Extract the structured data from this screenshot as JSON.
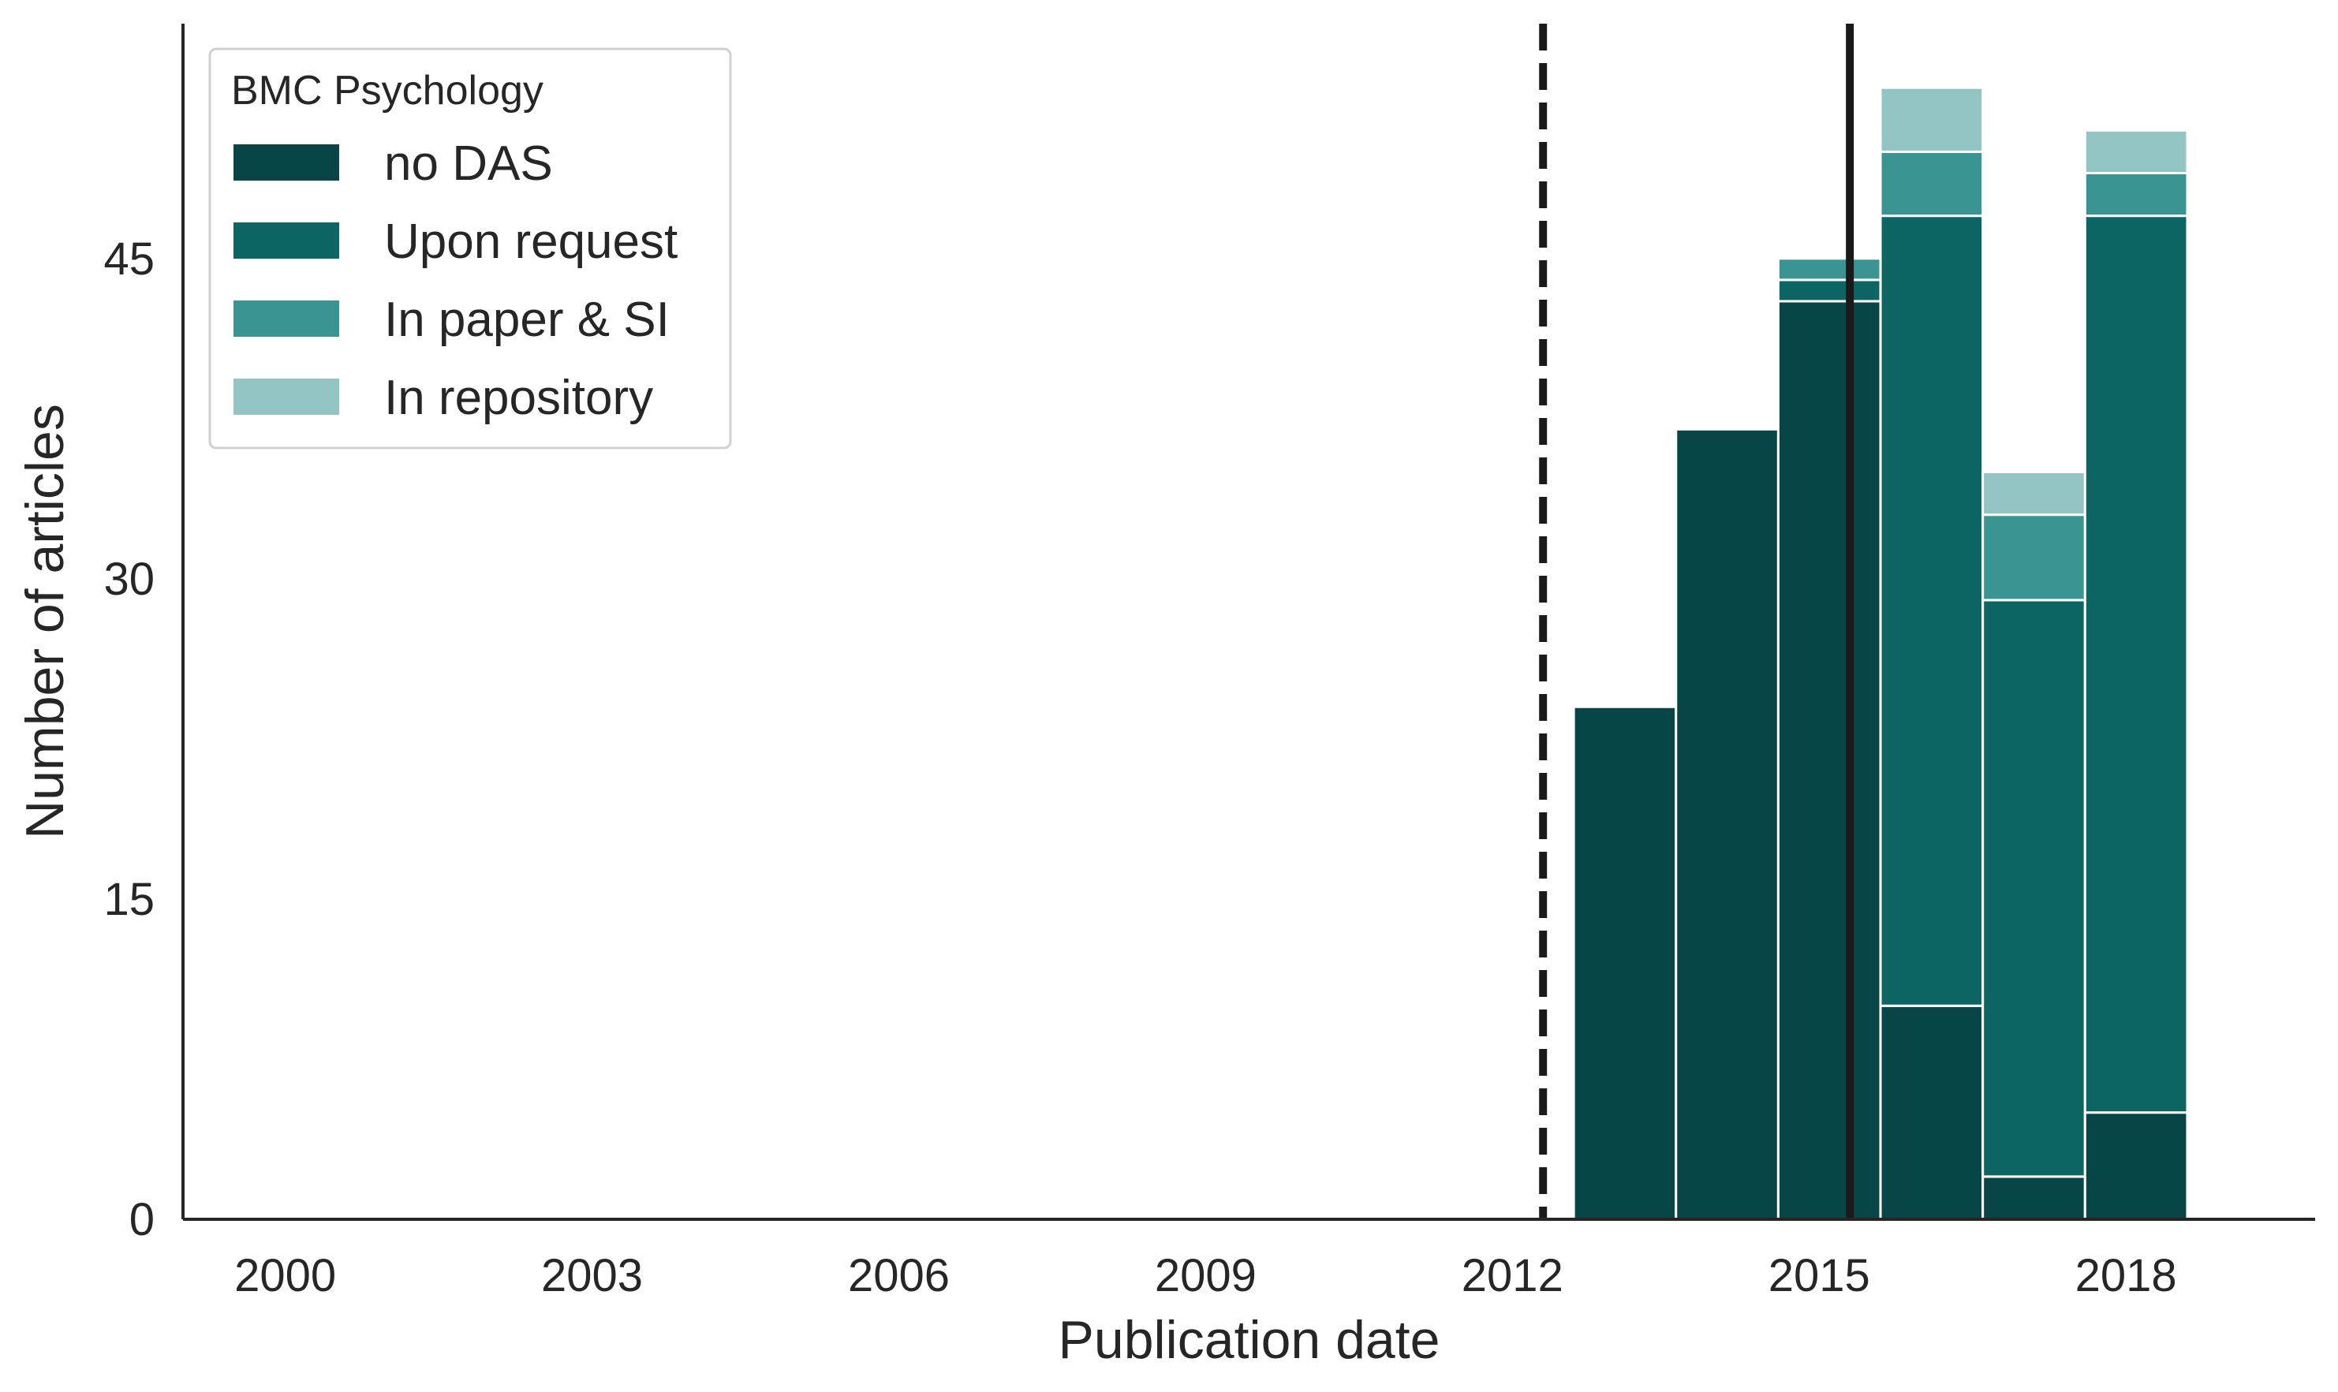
{
  "chart_data": {
    "type": "bar",
    "stacked": true,
    "xlabel": "Publication date",
    "ylabel": "Number of articles",
    "x_ticks": [
      "2000",
      "2003",
      "2006",
      "2009",
      "2012",
      "2015",
      "2018"
    ],
    "y_ticks": [
      "0",
      "15",
      "30",
      "45"
    ],
    "xlim": [
      1999.0,
      2019.85
    ],
    "ylim": [
      0,
      56
    ],
    "grid": false,
    "legend": {
      "title": "BMC Psychology",
      "placement": "top-left"
    },
    "bins": [
      {
        "start": 2012.6,
        "end": 2013.6
      },
      {
        "start": 2013.6,
        "end": 2014.6
      },
      {
        "start": 2014.6,
        "end": 2015.6
      },
      {
        "start": 2015.6,
        "end": 2016.6
      },
      {
        "start": 2016.6,
        "end": 2017.6
      },
      {
        "start": 2017.6,
        "end": 2018.6
      }
    ],
    "series": [
      {
        "name": "no DAS",
        "color": "#084546",
        "values": [
          24,
          37,
          43,
          10,
          2,
          5
        ]
      },
      {
        "name": "Upon request",
        "color": "#0d6663",
        "values": [
          0,
          0,
          1,
          37,
          27,
          42
        ]
      },
      {
        "name": "In paper & SI",
        "color": "#3a9491",
        "values": [
          0,
          0,
          1,
          3,
          4,
          2
        ]
      },
      {
        "name": "In repository",
        "color": "#93c4c4",
        "values": [
          0,
          0,
          0,
          3,
          2,
          2
        ]
      }
    ],
    "reference_lines": [
      {
        "x": 2012.3,
        "style": "dashed",
        "color": "#1a1a1a"
      },
      {
        "x": 2015.3,
        "style": "solid",
        "color": "#1a1a1a"
      }
    ]
  }
}
